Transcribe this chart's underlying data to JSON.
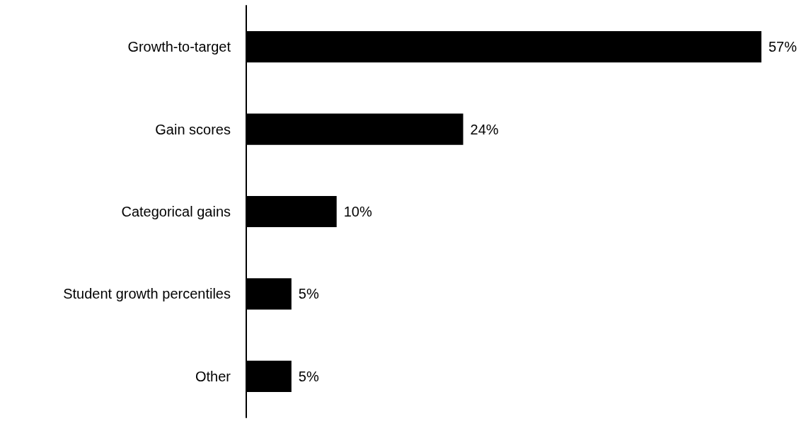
{
  "chart_data": {
    "type": "bar",
    "orientation": "horizontal",
    "categories": [
      "Growth-to-target",
      "Gain scores",
      "Categorical gains",
      "Student growth percentiles",
      "Other"
    ],
    "values": [
      57,
      24,
      10,
      5,
      5
    ],
    "color": "#000000",
    "value_labels": [
      "57%",
      "24%",
      "10%",
      "5%",
      "5%"
    ]
  }
}
